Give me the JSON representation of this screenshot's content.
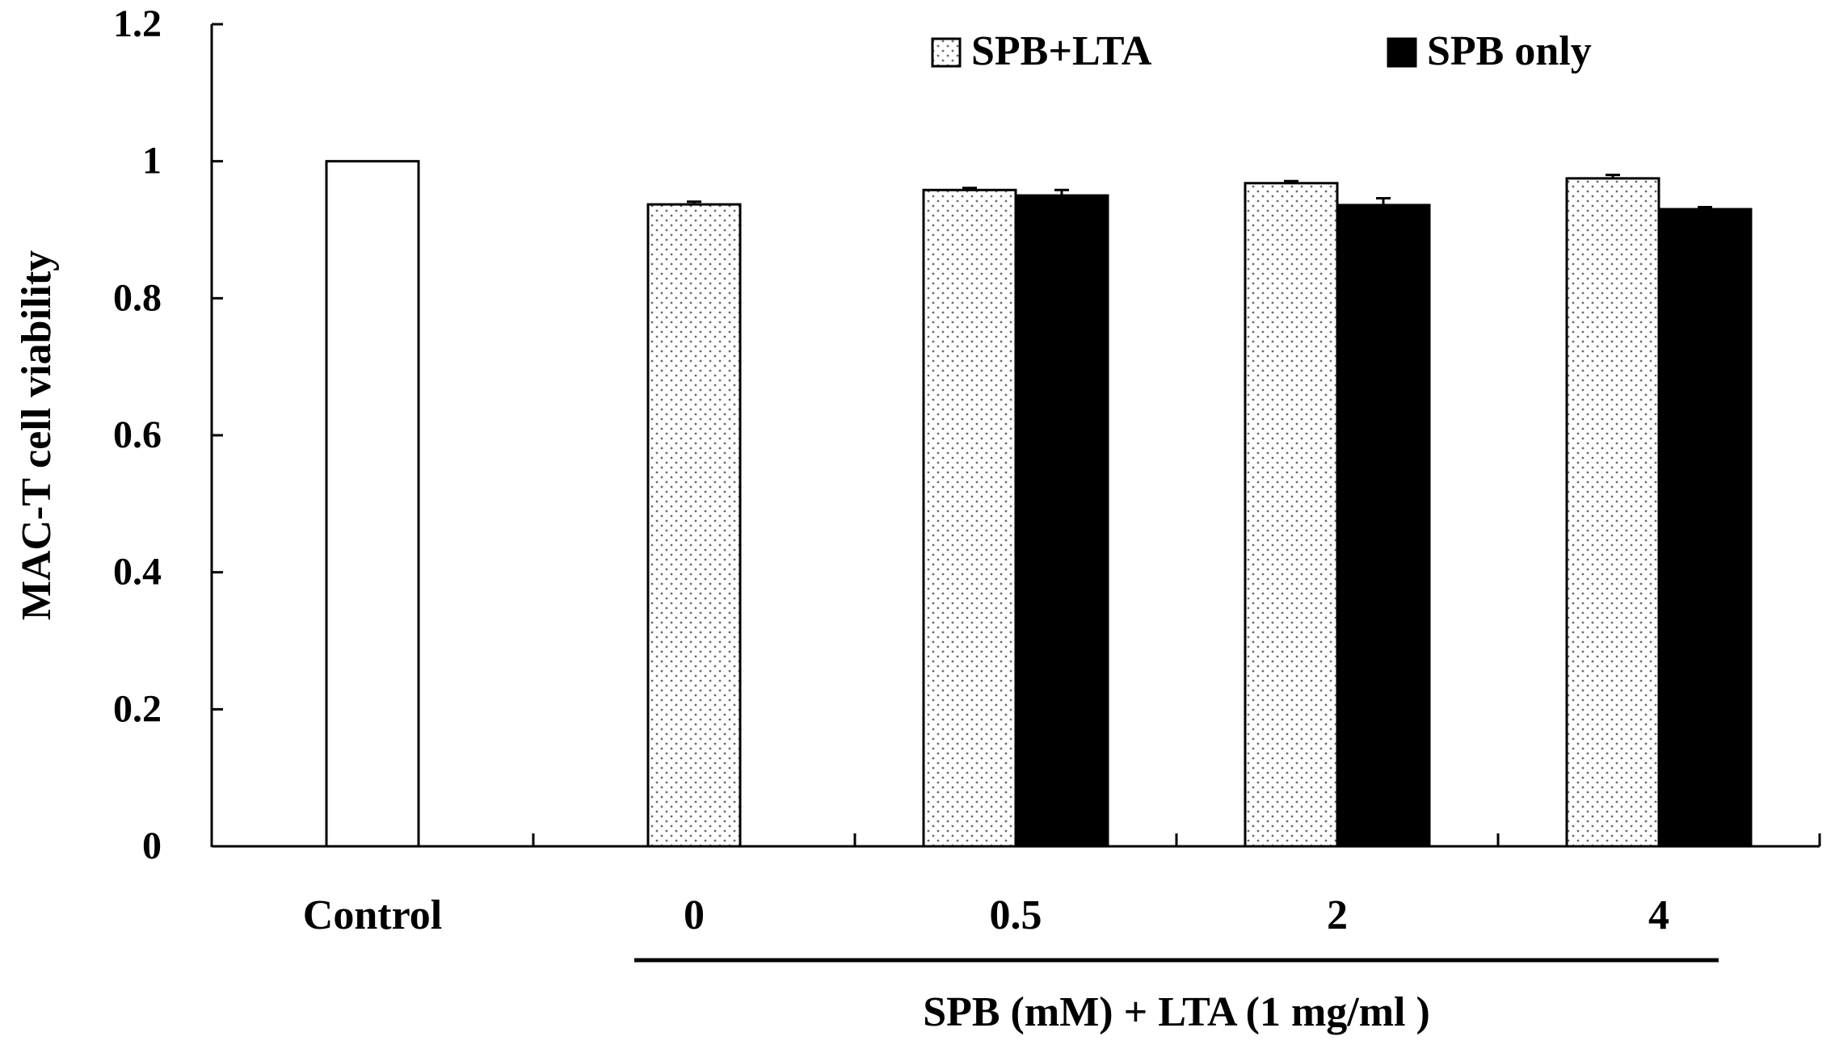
{
  "chart_data": {
    "type": "bar",
    "ylabel": "MAC-T cell viability",
    "xlabel": "SPB (mM) + LTA (1 mg/ml )",
    "ylim": [
      0,
      1.2
    ],
    "yticks": [
      "0",
      "0.2",
      "0.4",
      "0.6",
      "0.8",
      "1",
      "1.2"
    ],
    "categories": [
      "Control",
      "0",
      "0.5",
      "2",
      "4"
    ],
    "grid": false,
    "legend_position": "top",
    "legend": [
      {
        "label": "SPB+LTA",
        "pattern": "dotted"
      },
      {
        "label": "SPB only",
        "pattern": "solid-black"
      }
    ],
    "series": [
      {
        "label": "Control",
        "pattern": "white",
        "values": [
          1.0,
          null,
          null,
          null,
          null
        ],
        "errors": [
          0,
          null,
          null,
          null,
          null
        ]
      },
      {
        "label": "SPB+LTA",
        "pattern": "dotted",
        "values": [
          null,
          0.937,
          0.958,
          0.968,
          0.975
        ],
        "errors": [
          null,
          0.004,
          0.003,
          0.003,
          0.005
        ]
      },
      {
        "label": "SPB only",
        "pattern": "solid-black",
        "values": [
          null,
          null,
          0.95,
          0.936,
          0.93
        ],
        "errors": [
          null,
          null,
          0.008,
          0.01,
          0.003
        ]
      }
    ],
    "bracket_under": [
      "0",
      "4"
    ]
  }
}
